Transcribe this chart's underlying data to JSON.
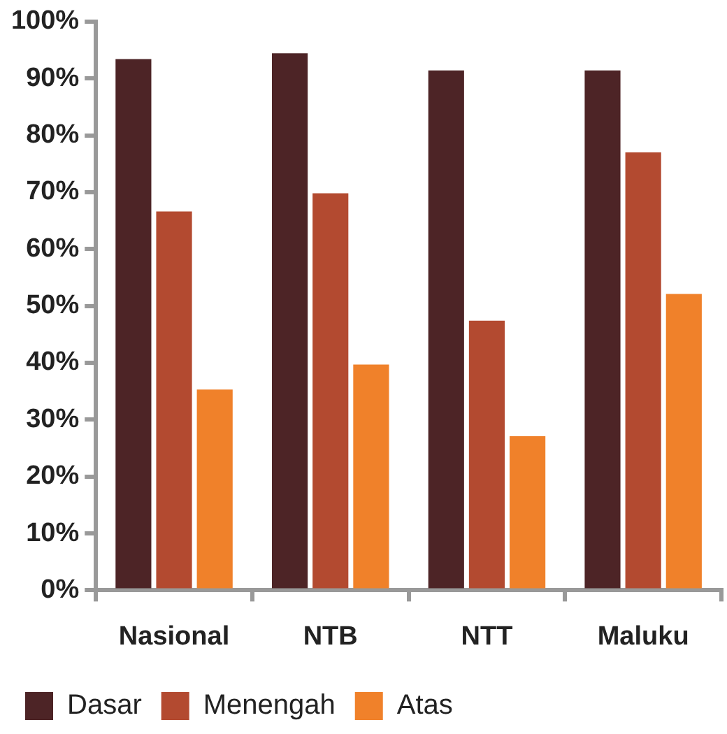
{
  "chart_data": {
    "type": "bar",
    "categories": [
      "Nasional",
      "NTB",
      "NTT",
      "Maluku"
    ],
    "series": [
      {
        "name": "Dasar",
        "color": "#4d2426",
        "values": [
          93.4,
          94.4,
          91.4,
          91.4
        ]
      },
      {
        "name": "Menengah",
        "color": "#b34a30",
        "values": [
          66.6,
          69.8,
          47.4,
          77.0
        ]
      },
      {
        "name": "Atas",
        "color": "#f0812a",
        "values": [
          35.3,
          39.7,
          27.1,
          52.1
        ]
      }
    ],
    "ylim": [
      0,
      100
    ],
    "yticks": [
      {
        "value": 0,
        "label": "0%"
      },
      {
        "value": 10,
        "label": "10%"
      },
      {
        "value": 20,
        "label": "20%"
      },
      {
        "value": 30,
        "label": "30%"
      },
      {
        "value": 40,
        "label": "40%"
      },
      {
        "value": 50,
        "label": "50%"
      },
      {
        "value": 60,
        "label": "60%"
      },
      {
        "value": 70,
        "label": "70%"
      },
      {
        "value": 80,
        "label": "80%"
      },
      {
        "value": 90,
        "label": "90%"
      },
      {
        "value": 100,
        "label": "100%"
      }
    ],
    "grid": false,
    "legend": "bottom left"
  }
}
